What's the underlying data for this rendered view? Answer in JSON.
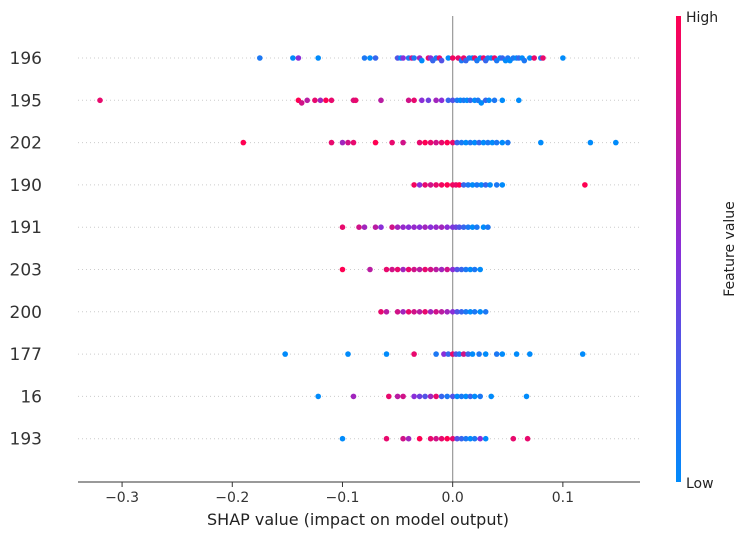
{
  "chart_data": {
    "type": "scatter",
    "subtype": "shap-beeswarm",
    "title": "",
    "xlabel": "SHAP value (impact on model output)",
    "ylabel": "",
    "xlim": [
      -0.34,
      0.17
    ],
    "x_ticks": [
      -0.3,
      -0.2,
      -0.1,
      0.0,
      0.1
    ],
    "x_tick_labels": [
      "−0.3",
      "−0.2",
      "−0.1",
      "0.0",
      "0.1"
    ],
    "features": [
      "196",
      "195",
      "202",
      "190",
      "191",
      "203",
      "200",
      "177",
      "16",
      "193"
    ],
    "colorbar": {
      "label": "Feature value",
      "high_label": "High",
      "low_label": "Low",
      "high_color": "#ff0052",
      "mid_color": "#8a2ed8",
      "low_color": "#008bfb"
    },
    "series": [
      {
        "feature": "196",
        "points": [
          [
            -0.175,
            0.1
          ],
          [
            -0.145,
            0.0
          ],
          [
            -0.14,
            0.5
          ],
          [
            -0.122,
            0.0
          ],
          [
            -0.08,
            0.1
          ],
          [
            -0.075,
            0.0
          ],
          [
            -0.07,
            0.2
          ],
          [
            -0.05,
            0.3
          ],
          [
            -0.047,
            0.0
          ],
          [
            -0.045,
            0.5
          ],
          [
            -0.04,
            0.1
          ],
          [
            -0.037,
            0.8
          ],
          [
            -0.035,
            0.1
          ],
          [
            -0.03,
            0.6
          ],
          [
            -0.028,
            0.0
          ],
          [
            -0.022,
            0.9
          ],
          [
            -0.02,
            0.5
          ],
          [
            -0.018,
            0.2
          ],
          [
            -0.015,
            0.1
          ],
          [
            -0.012,
            0.9
          ],
          [
            -0.01,
            0.3
          ],
          [
            -0.004,
            0.0
          ],
          [
            0.0,
            0.95
          ],
          [
            0.005,
            0.9
          ],
          [
            0.008,
            0.1
          ],
          [
            0.01,
            0.9
          ],
          [
            0.012,
            0.2
          ],
          [
            0.015,
            0.1
          ],
          [
            0.018,
            0.0
          ],
          [
            0.02,
            0.9
          ],
          [
            0.022,
            0.1
          ],
          [
            0.025,
            0.0
          ],
          [
            0.028,
            0.9
          ],
          [
            0.03,
            0.2
          ],
          [
            0.032,
            0.1
          ],
          [
            0.035,
            0.0
          ],
          [
            0.038,
            0.9
          ],
          [
            0.04,
            0.1
          ],
          [
            0.043,
            0.0
          ],
          [
            0.045,
            0.2
          ],
          [
            0.048,
            0.0
          ],
          [
            0.05,
            0.1
          ],
          [
            0.052,
            0.0
          ],
          [
            0.055,
            0.1
          ],
          [
            0.058,
            0.0
          ],
          [
            0.06,
            0.2
          ],
          [
            0.063,
            0.0
          ],
          [
            0.065,
            0.1
          ],
          [
            0.07,
            0.0
          ],
          [
            0.074,
            0.9
          ],
          [
            0.08,
            0.1
          ],
          [
            0.082,
            0.9
          ],
          [
            0.1,
            0.0
          ]
        ]
      },
      {
        "feature": "195",
        "points": [
          [
            -0.32,
            0.9
          ],
          [
            -0.14,
            1.0
          ],
          [
            -0.137,
            0.8
          ],
          [
            -0.132,
            0.7
          ],
          [
            -0.125,
            0.9
          ],
          [
            -0.12,
            0.6
          ],
          [
            -0.115,
            1.0
          ],
          [
            -0.11,
            0.9
          ],
          [
            -0.09,
            0.85
          ],
          [
            -0.088,
            0.9
          ],
          [
            -0.065,
            0.7
          ],
          [
            -0.04,
            0.8
          ],
          [
            -0.035,
            0.9
          ],
          [
            -0.028,
            0.5
          ],
          [
            -0.022,
            0.4
          ],
          [
            -0.015,
            0.6
          ],
          [
            -0.01,
            0.5
          ],
          [
            -0.004,
            0.2
          ],
          [
            0.0,
            0.3
          ],
          [
            0.004,
            0.1
          ],
          [
            0.007,
            0.0
          ],
          [
            0.01,
            0.1
          ],
          [
            0.013,
            0.0
          ],
          [
            0.016,
            0.2
          ],
          [
            0.02,
            0.0
          ],
          [
            0.023,
            0.1
          ],
          [
            0.026,
            0.0
          ],
          [
            0.03,
            0.2
          ],
          [
            0.033,
            0.0
          ],
          [
            0.038,
            0.1
          ],
          [
            0.045,
            0.0
          ],
          [
            0.06,
            0.0
          ]
        ]
      },
      {
        "feature": "202",
        "points": [
          [
            -0.19,
            1.0
          ],
          [
            -0.11,
            0.9
          ],
          [
            -0.1,
            0.6
          ],
          [
            -0.095,
            0.8
          ],
          [
            -0.09,
            0.9
          ],
          [
            -0.07,
            1.0
          ],
          [
            -0.055,
            0.9
          ],
          [
            -0.045,
            0.8
          ],
          [
            -0.03,
            0.9
          ],
          [
            -0.025,
            1.0
          ],
          [
            -0.02,
            0.9
          ],
          [
            -0.015,
            0.8
          ],
          [
            -0.01,
            0.9
          ],
          [
            -0.005,
            1.0
          ],
          [
            0.0,
            0.9
          ],
          [
            0.004,
            0.2
          ],
          [
            0.008,
            0.1
          ],
          [
            0.012,
            0.0
          ],
          [
            0.016,
            0.1
          ],
          [
            0.02,
            0.0
          ],
          [
            0.024,
            0.2
          ],
          [
            0.028,
            0.0
          ],
          [
            0.032,
            0.1
          ],
          [
            0.036,
            0.0
          ],
          [
            0.04,
            0.1
          ],
          [
            0.045,
            0.0
          ],
          [
            0.05,
            0.1
          ],
          [
            0.08,
            0.0
          ],
          [
            0.125,
            0.0
          ],
          [
            0.148,
            0.0
          ]
        ]
      },
      {
        "feature": "190",
        "points": [
          [
            -0.035,
            0.95
          ],
          [
            -0.03,
            0.5
          ],
          [
            -0.025,
            0.9
          ],
          [
            -0.02,
            0.8
          ],
          [
            -0.015,
            0.9
          ],
          [
            -0.01,
            0.95
          ],
          [
            -0.005,
            1.0
          ],
          [
            0.0,
            0.95
          ],
          [
            0.003,
            0.9
          ],
          [
            0.006,
            1.0
          ],
          [
            0.01,
            0.2
          ],
          [
            0.014,
            0.1
          ],
          [
            0.018,
            0.0
          ],
          [
            0.022,
            0.1
          ],
          [
            0.026,
            0.0
          ],
          [
            0.03,
            0.2
          ],
          [
            0.034,
            0.0
          ],
          [
            0.04,
            0.1
          ],
          [
            0.045,
            0.0
          ],
          [
            0.12,
            1.0
          ]
        ]
      },
      {
        "feature": "191",
        "points": [
          [
            -0.1,
            0.9
          ],
          [
            -0.085,
            0.8
          ],
          [
            -0.08,
            0.6
          ],
          [
            -0.07,
            0.7
          ],
          [
            -0.065,
            0.5
          ],
          [
            -0.055,
            0.8
          ],
          [
            -0.05,
            0.6
          ],
          [
            -0.045,
            0.55
          ],
          [
            -0.04,
            0.5
          ],
          [
            -0.035,
            0.55
          ],
          [
            -0.03,
            0.5
          ],
          [
            -0.025,
            0.6
          ],
          [
            -0.02,
            0.5
          ],
          [
            -0.015,
            0.55
          ],
          [
            -0.01,
            0.6
          ],
          [
            -0.005,
            0.5
          ],
          [
            0.0,
            0.45
          ],
          [
            0.003,
            0.4
          ],
          [
            0.006,
            0.3
          ],
          [
            0.01,
            0.2
          ],
          [
            0.014,
            0.1
          ],
          [
            0.018,
            0.0
          ],
          [
            0.022,
            0.1
          ],
          [
            0.028,
            0.0
          ],
          [
            0.032,
            0.1
          ]
        ]
      },
      {
        "feature": "203",
        "points": [
          [
            -0.1,
            1.0
          ],
          [
            -0.075,
            0.7
          ],
          [
            -0.06,
            0.9
          ],
          [
            -0.055,
            0.8
          ],
          [
            -0.05,
            0.9
          ],
          [
            -0.045,
            0.6
          ],
          [
            -0.04,
            0.9
          ],
          [
            -0.035,
            0.8
          ],
          [
            -0.03,
            0.7
          ],
          [
            -0.025,
            0.9
          ],
          [
            -0.02,
            0.8
          ],
          [
            -0.015,
            0.7
          ],
          [
            -0.01,
            0.6
          ],
          [
            -0.005,
            0.8
          ],
          [
            0.0,
            0.5
          ],
          [
            0.004,
            0.3
          ],
          [
            0.008,
            0.2
          ],
          [
            0.012,
            0.1
          ],
          [
            0.016,
            0.0
          ],
          [
            0.02,
            0.1
          ],
          [
            0.025,
            0.0
          ]
        ]
      },
      {
        "feature": "200",
        "points": [
          [
            -0.065,
            0.9
          ],
          [
            -0.06,
            0.7
          ],
          [
            -0.05,
            0.8
          ],
          [
            -0.045,
            0.6
          ],
          [
            -0.04,
            0.9
          ],
          [
            -0.035,
            0.8
          ],
          [
            -0.03,
            0.7
          ],
          [
            -0.025,
            0.9
          ],
          [
            -0.02,
            0.6
          ],
          [
            -0.015,
            0.8
          ],
          [
            -0.01,
            0.7
          ],
          [
            -0.005,
            0.6
          ],
          [
            0.0,
            0.5
          ],
          [
            0.004,
            0.3
          ],
          [
            0.008,
            0.2
          ],
          [
            0.012,
            0.1
          ],
          [
            0.016,
            0.0
          ],
          [
            0.02,
            0.1
          ],
          [
            0.025,
            0.0
          ],
          [
            0.03,
            0.1
          ]
        ]
      },
      {
        "feature": "177",
        "points": [
          [
            -0.152,
            0.0
          ],
          [
            -0.095,
            0.0
          ],
          [
            -0.06,
            0.0
          ],
          [
            -0.035,
            0.9
          ],
          [
            -0.015,
            0.1
          ],
          [
            -0.008,
            0.5
          ],
          [
            -0.004,
            0.2
          ],
          [
            0.0,
            0.9
          ],
          [
            0.003,
            0.3
          ],
          [
            0.006,
            0.1
          ],
          [
            0.01,
            0.8
          ],
          [
            0.014,
            0.2
          ],
          [
            0.018,
            0.0
          ],
          [
            0.024,
            0.1
          ],
          [
            0.03,
            0.0
          ],
          [
            0.04,
            0.1
          ],
          [
            0.045,
            0.0
          ],
          [
            0.058,
            0.0
          ],
          [
            0.07,
            0.0
          ],
          [
            0.118,
            0.0
          ]
        ]
      },
      {
        "feature": "16",
        "points": [
          [
            -0.122,
            0.0
          ],
          [
            -0.09,
            0.6
          ],
          [
            -0.058,
            0.9
          ],
          [
            -0.05,
            0.7
          ],
          [
            -0.045,
            0.8
          ],
          [
            -0.035,
            0.5
          ],
          [
            -0.03,
            0.4
          ],
          [
            -0.025,
            0.3
          ],
          [
            -0.02,
            0.6
          ],
          [
            -0.015,
            0.9
          ],
          [
            -0.01,
            0.2
          ],
          [
            -0.005,
            0.1
          ],
          [
            0.0,
            0.3
          ],
          [
            0.004,
            0.0
          ],
          [
            0.008,
            0.1
          ],
          [
            0.012,
            0.0
          ],
          [
            0.016,
            0.2
          ],
          [
            0.02,
            0.0
          ],
          [
            0.025,
            0.1
          ],
          [
            0.035,
            0.0
          ],
          [
            0.067,
            0.0
          ]
        ]
      },
      {
        "feature": "193",
        "points": [
          [
            -0.1,
            0.0
          ],
          [
            -0.06,
            0.9
          ],
          [
            -0.045,
            0.8
          ],
          [
            -0.04,
            0.6
          ],
          [
            -0.03,
            1.0
          ],
          [
            -0.02,
            0.9
          ],
          [
            -0.015,
            0.8
          ],
          [
            -0.01,
            0.9
          ],
          [
            -0.005,
            1.0
          ],
          [
            0.0,
            0.9
          ],
          [
            0.004,
            0.3
          ],
          [
            0.008,
            0.2
          ],
          [
            0.012,
            0.1
          ],
          [
            0.016,
            0.0
          ],
          [
            0.02,
            0.1
          ],
          [
            0.025,
            0.5
          ],
          [
            0.03,
            0.0
          ],
          [
            0.055,
            0.9
          ],
          [
            0.068,
            0.9
          ]
        ]
      }
    ]
  }
}
